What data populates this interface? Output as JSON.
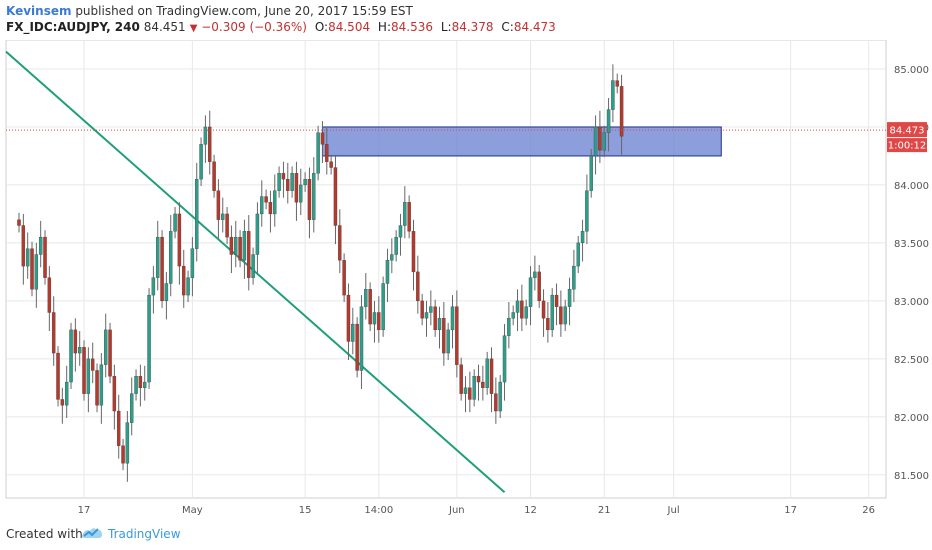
{
  "header": {
    "author": "Kevinsem",
    "published": " published on TradingView.com, June 20, 2017 15:59 EST",
    "symbol": "FX_IDC:AUDJPY, 240",
    "last": "84.451",
    "change": "−0.309 (−0.36%)",
    "o_label": "O:",
    "o": "84.504",
    "h_label": "H:",
    "h": "84.536",
    "l_label": "L:",
    "l": "84.378",
    "c_label": "C:",
    "c": "84.473"
  },
  "footer": {
    "created_with": "Created with",
    "brand": "TradingView"
  },
  "chart_data": {
    "type": "line",
    "instrument": "FX_IDC:AUDJPY",
    "interval": "240",
    "y_range": [
      81.3,
      85.25
    ],
    "y_ticks": [
      "85.000",
      "84.500",
      "84.000",
      "83.500",
      "83.000",
      "82.500",
      "82.000",
      "81.500"
    ],
    "y_tick_values": [
      85.0,
      84.5,
      84.0,
      83.5,
      83.0,
      82.5,
      82.0,
      81.5
    ],
    "x_ticks": [
      "17",
      "May",
      "15",
      "14:00",
      "Jun",
      "12",
      "21",
      "Jul",
      "17",
      "26"
    ],
    "x_tick_index": [
      18,
      43,
      69,
      86,
      104,
      121,
      138,
      154,
      181,
      199
    ],
    "x_index_range": [
      0,
      203
    ],
    "series": [
      {
        "values": [
          83.65,
          83.3,
          83.45,
          83.1,
          83.4,
          83.55,
          83.2,
          82.9,
          82.55,
          82.15,
          82.1,
          82.3,
          82.75,
          82.55,
          82.6,
          82.2,
          82.5,
          82.4,
          82.1,
          82.45,
          82.75,
          82.35,
          82.05,
          81.75,
          81.6,
          81.95,
          82.2,
          82.35,
          82.25,
          82.3,
          83.05,
          83.2,
          83.55,
          83.0,
          83.15,
          83.6,
          83.75,
          83.3,
          83.05,
          83.2,
          83.45,
          84.05,
          84.35,
          84.5,
          84.2,
          83.95,
          83.7,
          83.75,
          83.55,
          83.4,
          83.55,
          83.35,
          83.6,
          83.2,
          83.4,
          83.75,
          83.9,
          83.85,
          83.75,
          83.95,
          84.1,
          84.05,
          83.95,
          84.1,
          83.85,
          84.0,
          84.05,
          83.7,
          84.1,
          84.45,
          84.35,
          84.2,
          84.15,
          83.65,
          83.35,
          83.05,
          82.65,
          82.8,
          82.4,
          82.95,
          83.1,
          82.8,
          82.9,
          82.75,
          83.15,
          83.35,
          83.4,
          83.55,
          83.65,
          83.85,
          83.6,
          83.25,
          83.0,
          82.85,
          82.9,
          82.95,
          82.75,
          82.85,
          82.55,
          82.75,
          82.95,
          82.45,
          82.2,
          82.25,
          82.15,
          82.35,
          82.3,
          82.25,
          82.5,
          82.2,
          82.05,
          82.3,
          82.7,
          82.85,
          82.9,
          83.0,
          82.85,
          82.95,
          83.2,
          83.25,
          83.0,
          82.85,
          82.75,
          83.05,
          82.95,
          82.8,
          82.95,
          83.1,
          83.3,
          83.5,
          83.6,
          83.95,
          84.25,
          84.5,
          84.3,
          84.45,
          84.65,
          84.9,
          84.85,
          84.42
        ],
        "x_start": 3,
        "x_step": 1
      }
    ],
    "trendline": {
      "from": [
        0,
        85.15
      ],
      "to": [
        115,
        81.35
      ]
    },
    "zone": {
      "x_from": 73,
      "x_to": 165,
      "y_low": 84.25,
      "y_high": 84.5
    },
    "price_line": 84.473,
    "price_badge": "84.473",
    "countdown": "1:00:12",
    "colors": {
      "up": "#2e9e8a",
      "down": "#b53a2e",
      "wick": "#666666",
      "trend": "#1f9e7a",
      "zone_fill": "#6f86d2",
      "zone_stroke": "#1f2f88",
      "price": "#e04848",
      "grid": "#e8e8e8",
      "axis_text": "#555555"
    }
  }
}
